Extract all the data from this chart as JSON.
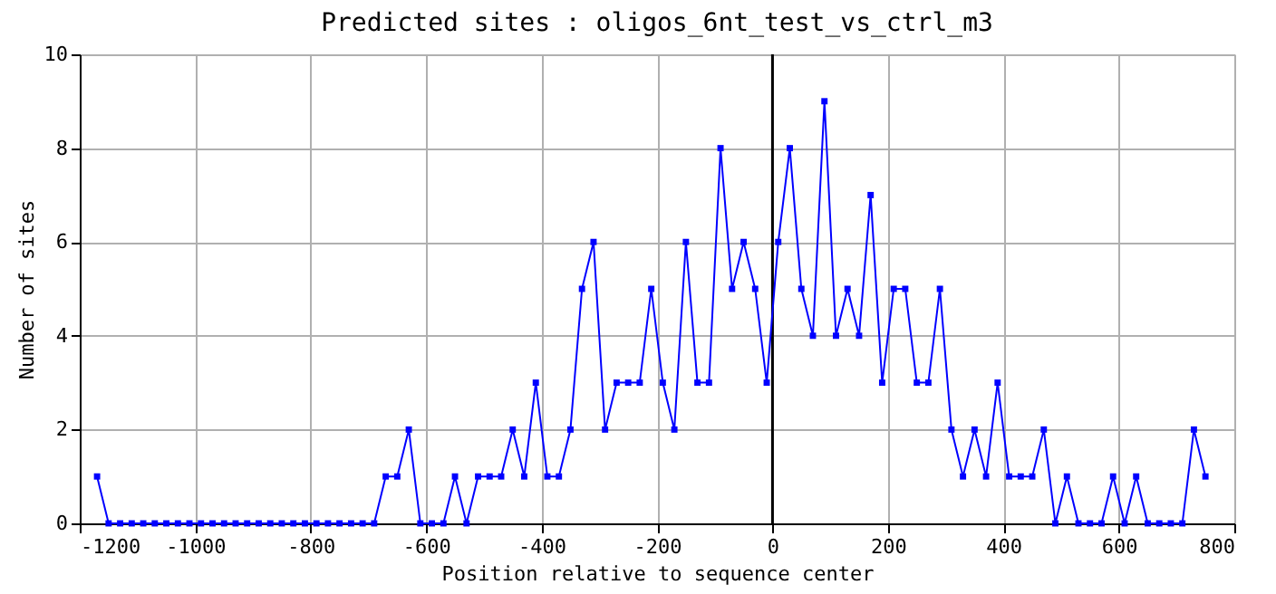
{
  "chart_data": {
    "type": "line",
    "title": "Predicted sites : oligos_6nt_test_vs_ctrl_m3",
    "xlabel": "Position relative to sequence center",
    "ylabel": "Number of sites",
    "x": [
      -1170,
      -1150,
      -1130,
      -1110,
      -1090,
      -1070,
      -1050,
      -1030,
      -1010,
      -990,
      -970,
      -950,
      -930,
      -910,
      -890,
      -870,
      -850,
      -830,
      -810,
      -790,
      -770,
      -750,
      -730,
      -710,
      -690,
      -670,
      -650,
      -630,
      -610,
      -590,
      -570,
      -550,
      -530,
      -510,
      -490,
      -470,
      -450,
      -430,
      -410,
      -390,
      -370,
      -350,
      -330,
      -310,
      -290,
      -270,
      -250,
      -230,
      -210,
      -190,
      -170,
      -150,
      -130,
      -110,
      -90,
      -70,
      -50,
      -30,
      -10,
      10,
      30,
      50,
      70,
      90,
      110,
      130,
      150,
      170,
      190,
      210,
      230,
      250,
      270,
      290,
      310,
      330,
      350,
      370,
      390,
      410,
      430,
      450,
      470,
      490,
      510,
      530,
      550,
      570,
      590,
      610,
      630,
      650,
      670,
      690,
      710,
      730,
      750
    ],
    "series": [
      {
        "color": "#0000ff",
        "values": [
          1,
          0,
          0,
          0,
          0,
          0,
          0,
          0,
          0,
          0,
          0,
          0,
          0,
          0,
          0,
          0,
          0,
          0,
          0,
          0,
          0,
          0,
          0,
          0,
          0,
          1,
          1,
          2,
          0,
          0,
          0,
          1,
          0,
          1,
          1,
          1,
          2,
          1,
          3,
          1,
          1,
          2,
          5,
          6,
          2,
          3,
          3,
          3,
          5,
          3,
          2,
          6,
          3,
          3,
          8,
          5,
          6,
          5,
          3,
          6,
          8,
          5,
          4,
          9,
          4,
          5,
          4,
          7,
          3,
          5,
          5,
          3,
          3,
          5,
          2,
          1,
          2,
          1,
          3,
          1,
          1,
          1,
          2,
          0,
          1,
          0,
          0,
          0,
          1,
          0,
          1,
          0,
          0,
          0,
          0,
          2,
          1
        ]
      }
    ],
    "xlim": [
      -1200,
      800
    ],
    "xticks": [
      -1200,
      -1000,
      -800,
      -600,
      -400,
      -200,
      0,
      200,
      400,
      600,
      800
    ],
    "ylim": [
      0,
      10
    ],
    "yticks": [
      0,
      2,
      4,
      6,
      8,
      10
    ],
    "ref_lines": [
      {
        "axis": "x",
        "value": 0,
        "color": "#000000"
      }
    ],
    "grid": true,
    "marker": "square",
    "line_style": "solid"
  }
}
